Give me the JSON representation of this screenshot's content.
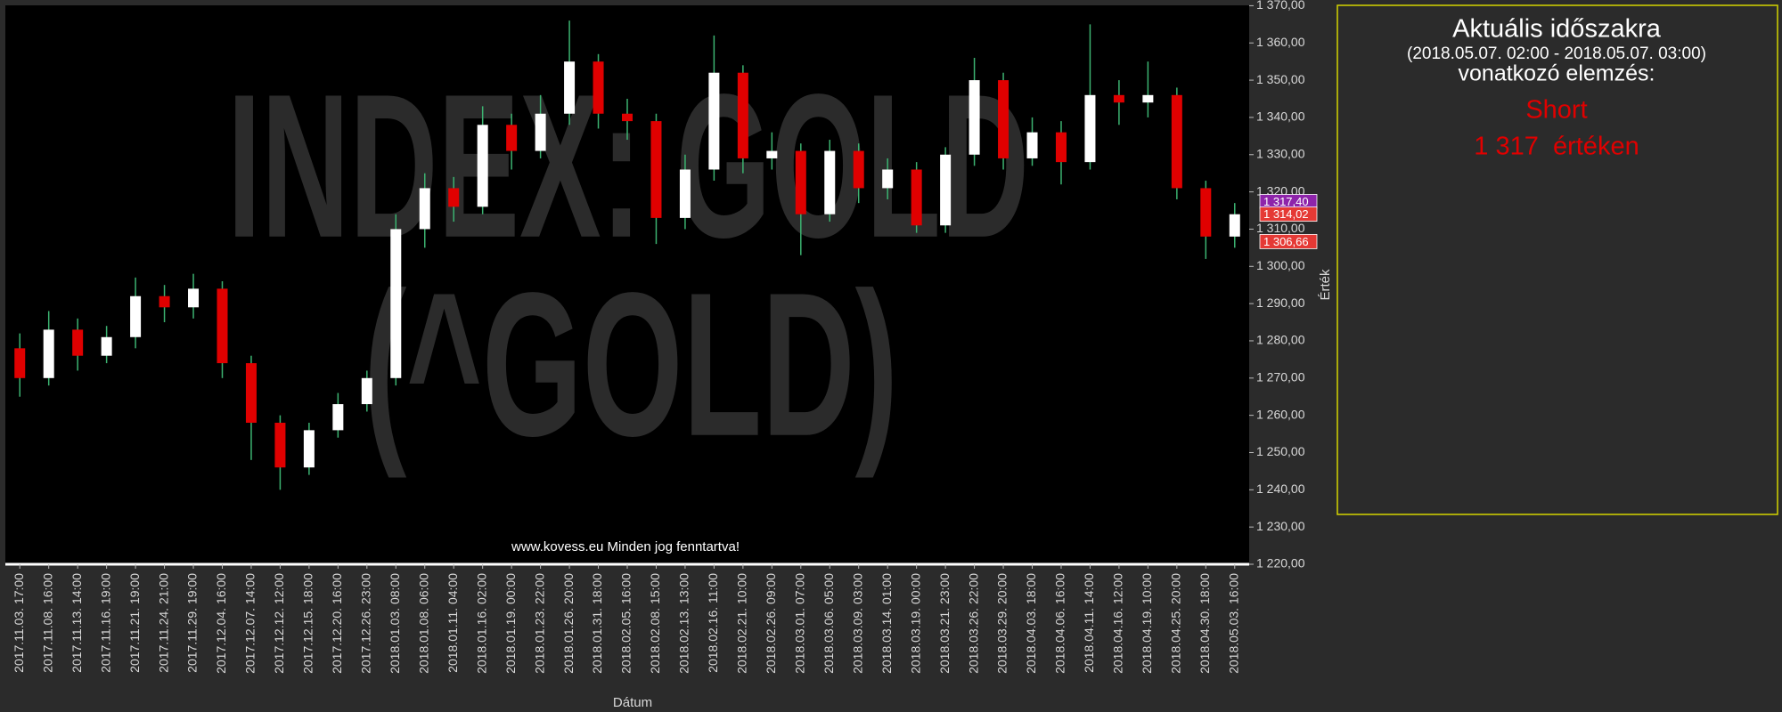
{
  "chart_data": {
    "type": "candlestick",
    "watermark": [
      "INDEX: GOLD",
      "(^GOLD)"
    ],
    "footer": "www.kovess.eu Minden jog fenntartva!",
    "x_label": "Dátum",
    "y_label": "Érték",
    "categories": [
      "2017.11.03. 17:00",
      "2017.11.08. 16:00",
      "2017.11.13. 14:00",
      "2017.11.16. 19:00",
      "2017.11.21. 19:00",
      "2017.11.24. 21:00",
      "2017.11.29. 19:00",
      "2017.12.04. 16:00",
      "2017.12.07. 14:00",
      "2017.12.12. 12:00",
      "2017.12.15. 18:00",
      "2017.12.20. 16:00",
      "2017.12.26. 23:00",
      "2018.01.03. 08:00",
      "2018.01.08. 06:00",
      "2018.01.11. 04:00",
      "2018.01.16. 02:00",
      "2018.01.19. 00:00",
      "2018.01.23. 22:00",
      "2018.01.26. 20:00",
      "2018.01.31. 18:00",
      "2018.02.05. 16:00",
      "2018.02.08. 15:00",
      "2018.02.13. 13:00",
      "2018.02.16. 11:00",
      "2018.02.21. 10:00",
      "2018.02.26. 09:00",
      "2018.03.01. 07:00",
      "2018.03.06. 05:00",
      "2018.03.09. 03:00",
      "2018.03.14. 01:00",
      "2018.03.19. 00:00",
      "2018.03.21. 23:00",
      "2018.03.26. 22:00",
      "2018.03.29. 20:00",
      "2018.04.03. 18:00",
      "2018.04.06. 16:00",
      "2018.04.11. 14:00",
      "2018.04.16. 12:00",
      "2018.04.19. 10:00",
      "2018.04.25. 20:00",
      "2018.04.30. 18:00",
      "2018.05.03. 16:00"
    ],
    "open": [
      1278,
      1270,
      1283,
      1276,
      1281,
      1292,
      1289,
      1294,
      1274,
      1258,
      1246,
      1256,
      1263,
      1270,
      1310,
      1321,
      1316,
      1338,
      1331,
      1341,
      1355,
      1341,
      1339,
      1313,
      1326,
      1352,
      1329,
      1331,
      1314,
      1331,
      1321,
      1326,
      1311,
      1330,
      1350,
      1329,
      1336,
      1328,
      1346,
      1344,
      1346,
      1321,
      1308
    ],
    "high": [
      1282,
      1288,
      1286,
      1284,
      1297,
      1295,
      1298,
      1296,
      1276,
      1260,
      1258,
      1266,
      1272,
      1314,
      1325,
      1324,
      1343,
      1341,
      1346,
      1366,
      1357,
      1345,
      1341,
      1330,
      1362,
      1354,
      1336,
      1333,
      1334,
      1333,
      1329,
      1328,
      1332,
      1356,
      1352,
      1340,
      1339,
      1365,
      1350,
      1355,
      1348,
      1323,
      1317
    ],
    "low": [
      1265,
      1268,
      1272,
      1274,
      1278,
      1285,
      1286,
      1270,
      1248,
      1240,
      1244,
      1254,
      1261,
      1268,
      1305,
      1312,
      1314,
      1326,
      1329,
      1338,
      1337,
      1334,
      1306,
      1310,
      1323,
      1325,
      1326,
      1303,
      1312,
      1317,
      1318,
      1309,
      1309,
      1327,
      1326,
      1327,
      1322,
      1326,
      1338,
      1340,
      1318,
      1302,
      1305
    ],
    "close": [
      1270,
      1283,
      1276,
      1281,
      1292,
      1289,
      1294,
      1274,
      1258,
      1246,
      1256,
      1263,
      1270,
      1310,
      1321,
      1316,
      1338,
      1331,
      1341,
      1355,
      1341,
      1339,
      1313,
      1326,
      1352,
      1329,
      1331,
      1314,
      1331,
      1321,
      1326,
      1311,
      1330,
      1350,
      1329,
      1336,
      1328,
      1346,
      1344,
      1346,
      1321,
      1308,
      1314
    ],
    "up_color": "#ffffff",
    "down_color": "#e00000",
    "wick_color": "#3cb371",
    "ylim": [
      1220,
      1370
    ],
    "yticks": [
      {
        "value": 1220,
        "label": "1 220,00"
      },
      {
        "value": 1230,
        "label": "1 230,00"
      },
      {
        "value": 1240,
        "label": "1 240,00"
      },
      {
        "value": 1250,
        "label": "1 250,00"
      },
      {
        "value": 1260,
        "label": "1 260,00"
      },
      {
        "value": 1270,
        "label": "1 270,00"
      },
      {
        "value": 1280,
        "label": "1 280,00"
      },
      {
        "value": 1290,
        "label": "1 290,00"
      },
      {
        "value": 1300,
        "label": "1 300,00"
      },
      {
        "value": 1310,
        "label": "1 310,00"
      },
      {
        "value": 1320,
        "label": "1 320,00"
      },
      {
        "value": 1330,
        "label": "1 330,00"
      },
      {
        "value": 1340,
        "label": "1 340,00"
      },
      {
        "value": 1350,
        "label": "1 350,00"
      },
      {
        "value": 1360,
        "label": "1 360,00"
      },
      {
        "value": 1370,
        "label": "1 370,00"
      }
    ],
    "price_markers": [
      {
        "value": 1317.4,
        "label": "1 317,40",
        "color": "#8e24aa"
      },
      {
        "value": 1314.02,
        "label": "1 314,02",
        "color": "#e53935"
      },
      {
        "value": 1306.66,
        "label": "1 306,66",
        "color": "#e53935"
      }
    ]
  },
  "panel": {
    "title": "Aktuális időszakra",
    "period": "(2018.05.07. 02:00 - 2018.05.07. 03:00)",
    "subtitle": "vonatkozó elemzés:",
    "signal": "Short",
    "level": "1 317  értéken"
  }
}
